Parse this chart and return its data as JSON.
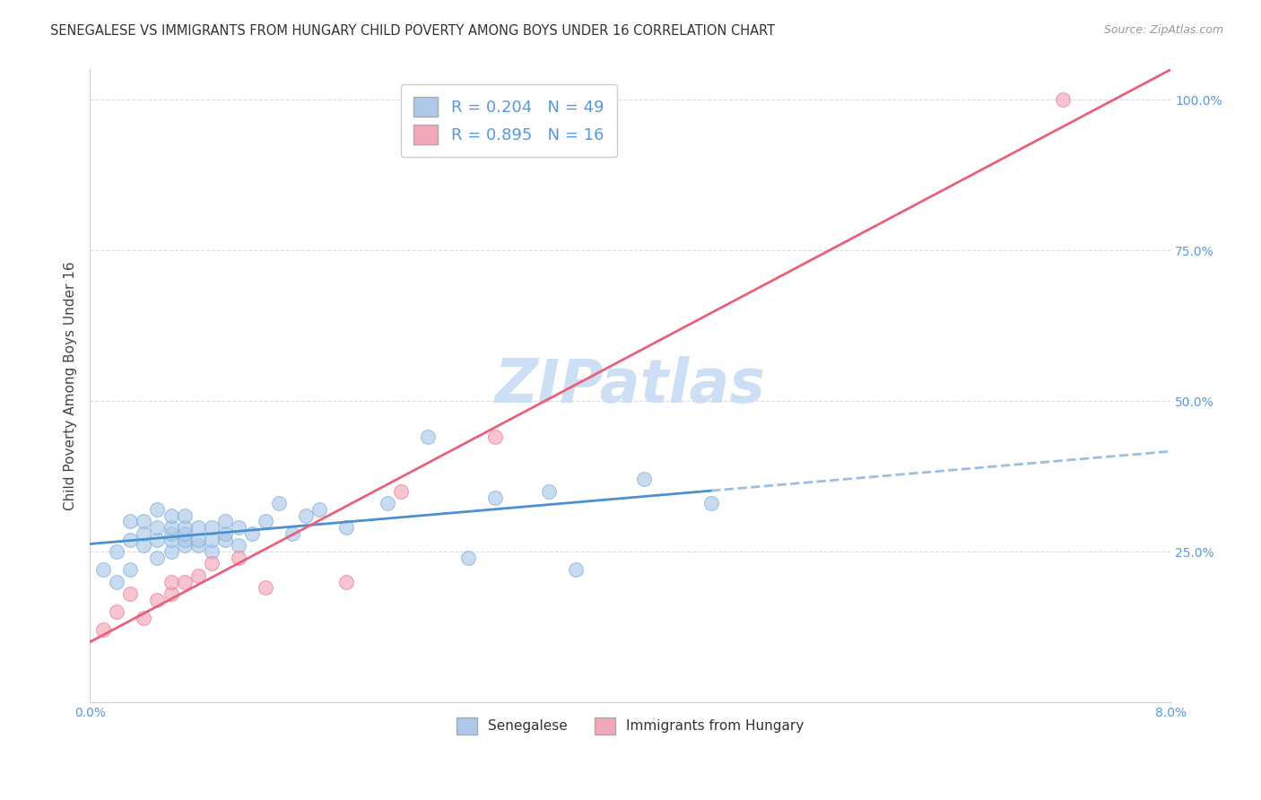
{
  "title": "SENEGALESE VS IMMIGRANTS FROM HUNGARY CHILD POVERTY AMONG BOYS UNDER 16 CORRELATION CHART",
  "source": "Source: ZipAtlas.com",
  "ylabel": "Child Poverty Among Boys Under 16",
  "x_min": 0.0,
  "x_max": 0.08,
  "y_min": 0.0,
  "y_max": 1.05,
  "x_ticks": [
    0.0,
    0.01,
    0.02,
    0.03,
    0.04,
    0.05,
    0.06,
    0.07,
    0.08
  ],
  "y_ticks": [
    0.25,
    0.5,
    0.75,
    1.0
  ],
  "senegalese_color": "#adc8ea",
  "hungary_color": "#f4a7b9",
  "senegalese_edge_color": "#7aadd4",
  "hungary_edge_color": "#e8788f",
  "senegalese_line_color": "#4a90d0",
  "hungary_line_color": "#e8607a",
  "dashed_line_color": "#9bbfe0",
  "watermark_color": "#ccdff5",
  "background_color": "#ffffff",
  "grid_color": "#dddddd",
  "tick_color": "#5599dd",
  "label_color": "#444444",
  "title_color": "#333333",
  "source_color": "#999999",
  "legend_label_color": "#5599dd",
  "bottom_legend_color": "#333333",
  "senegalese_x": [
    0.001,
    0.002,
    0.002,
    0.003,
    0.003,
    0.003,
    0.004,
    0.004,
    0.004,
    0.005,
    0.005,
    0.005,
    0.005,
    0.006,
    0.006,
    0.006,
    0.006,
    0.006,
    0.007,
    0.007,
    0.007,
    0.007,
    0.007,
    0.008,
    0.008,
    0.008,
    0.009,
    0.009,
    0.009,
    0.01,
    0.01,
    0.01,
    0.011,
    0.011,
    0.012,
    0.013,
    0.014,
    0.015,
    0.016,
    0.017,
    0.019,
    0.022,
    0.025,
    0.028,
    0.03,
    0.034,
    0.036,
    0.041,
    0.046
  ],
  "senegalese_y": [
    0.22,
    0.2,
    0.25,
    0.22,
    0.27,
    0.3,
    0.26,
    0.28,
    0.3,
    0.24,
    0.27,
    0.29,
    0.32,
    0.25,
    0.27,
    0.28,
    0.29,
    0.31,
    0.26,
    0.27,
    0.28,
    0.29,
    0.31,
    0.26,
    0.27,
    0.29,
    0.25,
    0.27,
    0.29,
    0.27,
    0.28,
    0.3,
    0.26,
    0.29,
    0.28,
    0.3,
    0.33,
    0.28,
    0.31,
    0.32,
    0.29,
    0.33,
    0.44,
    0.24,
    0.34,
    0.35,
    0.22,
    0.37,
    0.33
  ],
  "hungary_x": [
    0.001,
    0.002,
    0.003,
    0.004,
    0.005,
    0.006,
    0.006,
    0.007,
    0.008,
    0.009,
    0.011,
    0.013,
    0.019,
    0.023,
    0.03,
    0.072
  ],
  "hungary_y": [
    0.12,
    0.15,
    0.18,
    0.14,
    0.17,
    0.18,
    0.2,
    0.2,
    0.21,
    0.23,
    0.24,
    0.19,
    0.2,
    0.35,
    0.44,
    1.0
  ],
  "title_fontsize": 10.5,
  "axis_label_fontsize": 11,
  "tick_fontsize": 10,
  "legend_fontsize": 13,
  "watermark_fontsize": 48,
  "scatter_size": 130,
  "scatter_alpha": 0.65,
  "line_width": 2.0
}
